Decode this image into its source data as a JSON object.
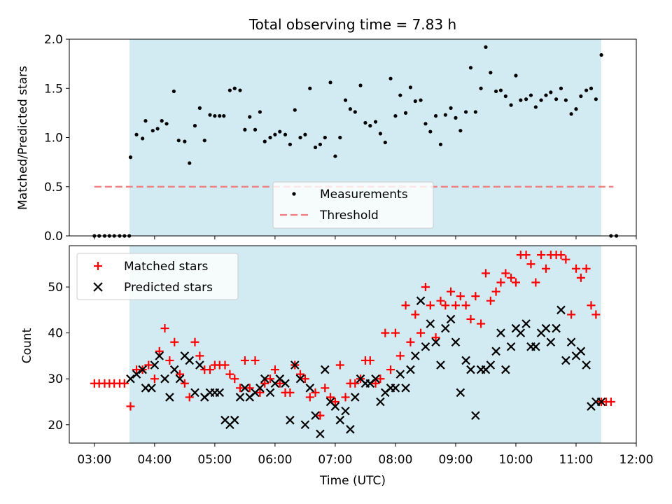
{
  "chart_data": [
    {
      "type": "scatter",
      "title": "Total observing time = 7.83 h",
      "xlabel": "",
      "ylabel": "Matched/Predicted stars",
      "x_unit": "hours UTC",
      "xlim": [
        "02:35",
        "12:00"
      ],
      "ylim": [
        0,
        2.0
      ],
      "yticks": [
        "0.0",
        "0.5",
        "1.0",
        "1.5",
        "2.0"
      ],
      "shaded_x_range": [
        "03:35",
        "11:25"
      ],
      "legend_position": "lower center",
      "legend": [
        "Measurements",
        "Threshold"
      ],
      "series": [
        {
          "name": "Measurements",
          "marker": "dot",
          "color": "#000000",
          "x": [
            3.0,
            3.08,
            3.17,
            3.25,
            3.33,
            3.42,
            3.5,
            3.58,
            3.6,
            3.7,
            3.8,
            3.85,
            3.97,
            4.05,
            4.12,
            4.2,
            4.32,
            4.4,
            4.5,
            4.58,
            4.67,
            4.75,
            4.83,
            4.92,
            5.0,
            5.08,
            5.15,
            5.25,
            5.33,
            5.42,
            5.5,
            5.58,
            5.67,
            5.75,
            5.83,
            5.92,
            6.0,
            6.08,
            6.17,
            6.25,
            6.33,
            6.42,
            6.5,
            6.58,
            6.67,
            6.75,
            6.83,
            6.92,
            7.0,
            7.08,
            7.17,
            7.25,
            7.33,
            7.42,
            7.5,
            7.58,
            7.67,
            7.75,
            7.83,
            7.92,
            8.0,
            8.08,
            8.17,
            8.25,
            8.33,
            8.42,
            8.5,
            8.58,
            8.67,
            8.75,
            8.83,
            8.92,
            9.0,
            9.08,
            9.17,
            9.25,
            9.33,
            9.42,
            9.5,
            9.58,
            9.67,
            9.75,
            9.83,
            9.92,
            10.0,
            10.08,
            10.17,
            10.25,
            10.33,
            10.42,
            10.5,
            10.58,
            10.67,
            10.75,
            10.83,
            10.92,
            11.0,
            11.08,
            11.17,
            11.25,
            11.33,
            11.42,
            11.58,
            11.67
          ],
          "values": [
            0.0,
            0.0,
            0.0,
            0.0,
            0.0,
            0.0,
            0.0,
            0.0,
            0.8,
            1.03,
            0.99,
            1.17,
            1.07,
            1.09,
            1.17,
            1.14,
            1.47,
            0.97,
            0.96,
            0.74,
            1.12,
            1.3,
            0.97,
            1.23,
            1.22,
            1.22,
            1.22,
            1.48,
            1.5,
            1.48,
            1.08,
            1.21,
            1.08,
            1.26,
            0.96,
            1.0,
            1.03,
            1.06,
            1.03,
            0.93,
            1.28,
            1.0,
            1.03,
            1.5,
            0.9,
            0.93,
            1.0,
            1.56,
            0.81,
            1.0,
            1.38,
            1.29,
            1.26,
            1.53,
            1.15,
            1.12,
            1.16,
            1.04,
            0.95,
            1.6,
            1.22,
            1.43,
            1.25,
            1.51,
            1.37,
            1.38,
            1.14,
            1.06,
            1.22,
            0.93,
            1.23,
            1.3,
            1.2,
            1.07,
            1.26,
            1.71,
            1.26,
            1.5,
            1.92,
            1.66,
            1.47,
            1.48,
            1.42,
            1.33,
            1.63,
            1.38,
            1.39,
            1.43,
            1.31,
            1.38,
            1.43,
            1.46,
            1.39,
            1.5,
            1.38,
            1.24,
            1.29,
            1.42,
            1.48,
            1.5,
            1.39,
            1.84,
            0.0,
            0.0
          ]
        },
        {
          "name": "Threshold",
          "marker": "dashed-line",
          "color": "#f07c7c",
          "x": [
            3.0,
            11.62
          ],
          "values": [
            0.5,
            0.5
          ]
        }
      ]
    },
    {
      "type": "scatter",
      "title": "",
      "xlabel": "Time (UTC)",
      "ylabel": "Count",
      "xlim": [
        "02:35",
        "12:00"
      ],
      "xticks": [
        "03:00",
        "04:00",
        "05:00",
        "06:00",
        "07:00",
        "08:00",
        "09:00",
        "10:00",
        "11:00",
        "12:00"
      ],
      "ylim": [
        16,
        59
      ],
      "yticks": [
        "20",
        "30",
        "40",
        "50"
      ],
      "shaded_x_range": [
        "03:35",
        "11:25"
      ],
      "legend_position": "upper left",
      "legend": [
        "Matched stars",
        "Predicted stars"
      ],
      "series": [
        {
          "name": "Matched stars",
          "marker": "plus",
          "color": "#ff0000",
          "x": [
            3.0,
            3.08,
            3.17,
            3.25,
            3.33,
            3.42,
            3.5,
            3.6,
            3.7,
            3.8,
            3.9,
            4.0,
            4.08,
            4.17,
            4.25,
            4.33,
            4.42,
            4.5,
            4.58,
            4.67,
            4.75,
            4.83,
            4.92,
            5.0,
            5.08,
            5.17,
            5.25,
            5.33,
            5.42,
            5.5,
            5.58,
            5.67,
            5.75,
            5.83,
            5.92,
            6.0,
            6.08,
            6.17,
            6.25,
            6.33,
            6.42,
            6.5,
            6.58,
            6.67,
            6.75,
            6.83,
            6.92,
            7.0,
            7.08,
            7.17,
            7.25,
            7.33,
            7.42,
            7.5,
            7.58,
            7.67,
            7.75,
            7.83,
            7.92,
            8.0,
            8.08,
            8.17,
            8.25,
            8.33,
            8.42,
            8.5,
            8.58,
            8.67,
            8.75,
            8.83,
            8.92,
            9.0,
            9.08,
            9.17,
            9.25,
            9.33,
            9.42,
            9.5,
            9.58,
            9.67,
            9.75,
            9.83,
            9.92,
            10.0,
            10.08,
            10.17,
            10.25,
            10.33,
            10.42,
            10.5,
            10.58,
            10.67,
            10.75,
            10.83,
            10.92,
            11.0,
            11.08,
            11.17,
            11.25,
            11.33,
            11.42,
            11.5,
            11.58
          ],
          "values": [
            29,
            29,
            29,
            29,
            29,
            29,
            29,
            24,
            32,
            32,
            33,
            30,
            36,
            41,
            34,
            38,
            31,
            29,
            26,
            38,
            35,
            32,
            32,
            33,
            33,
            33,
            31,
            30,
            28,
            34,
            28,
            34,
            27,
            29,
            30,
            32,
            29,
            27,
            27,
            33,
            31,
            30,
            26,
            27,
            22,
            28,
            26,
            25,
            33,
            26,
            29,
            29,
            30,
            34,
            34,
            29,
            30,
            40,
            32,
            40,
            35,
            46,
            38,
            44,
            40,
            50,
            46,
            39,
            47,
            46,
            49,
            46,
            48,
            46,
            43,
            48,
            42,
            53,
            47,
            49,
            51,
            53,
            52,
            51,
            57,
            57,
            55,
            51,
            57,
            54,
            57,
            57,
            57,
            56,
            44,
            54,
            52,
            54,
            46,
            44,
            25,
            25,
            25
          ]
        },
        {
          "name": "Predicted stars",
          "marker": "x",
          "color": "#000000",
          "x": [
            3.6,
            3.7,
            3.8,
            3.85,
            3.95,
            4.0,
            4.08,
            4.17,
            4.25,
            4.33,
            4.42,
            4.5,
            4.58,
            4.67,
            4.75,
            4.83,
            4.92,
            5.0,
            5.08,
            5.17,
            5.25,
            5.33,
            5.42,
            5.5,
            5.58,
            5.67,
            5.75,
            5.83,
            5.92,
            6.0,
            6.08,
            6.17,
            6.25,
            6.33,
            6.42,
            6.5,
            6.58,
            6.67,
            6.75,
            6.83,
            6.92,
            7.0,
            7.08,
            7.17,
            7.25,
            7.33,
            7.42,
            7.5,
            7.58,
            7.67,
            7.75,
            7.83,
            7.92,
            8.0,
            8.08,
            8.17,
            8.25,
            8.33,
            8.42,
            8.5,
            8.58,
            8.67,
            8.75,
            8.83,
            8.92,
            9.0,
            9.08,
            9.17,
            9.25,
            9.33,
            9.42,
            9.5,
            9.58,
            9.67,
            9.75,
            9.83,
            9.92,
            10.0,
            10.08,
            10.17,
            10.25,
            10.33,
            10.42,
            10.5,
            10.58,
            10.67,
            10.75,
            10.83,
            10.92,
            11.0,
            11.08,
            11.17,
            11.25,
            11.33,
            11.42
          ],
          "values": [
            30,
            31,
            32,
            28,
            28,
            33,
            35,
            30,
            26,
            32,
            30,
            35,
            34,
            27,
            33,
            26,
            27,
            27,
            27,
            21,
            20,
            21,
            26,
            28,
            26,
            27,
            28,
            30,
            27,
            29,
            30,
            29,
            21,
            33,
            30,
            20,
            28,
            22,
            18,
            32,
            25,
            24,
            21,
            23,
            19,
            26,
            30,
            29,
            29,
            30,
            25,
            27,
            28,
            28,
            31,
            28,
            32,
            35,
            47,
            37,
            42,
            38,
            33,
            41,
            43,
            38,
            27,
            34,
            32,
            22,
            32,
            32,
            33,
            36,
            40,
            32,
            37,
            41,
            40,
            42,
            37,
            37,
            40,
            41,
            38,
            41,
            45,
            34,
            38,
            35,
            36,
            33,
            24,
            25,
            25
          ]
        }
      ]
    }
  ]
}
